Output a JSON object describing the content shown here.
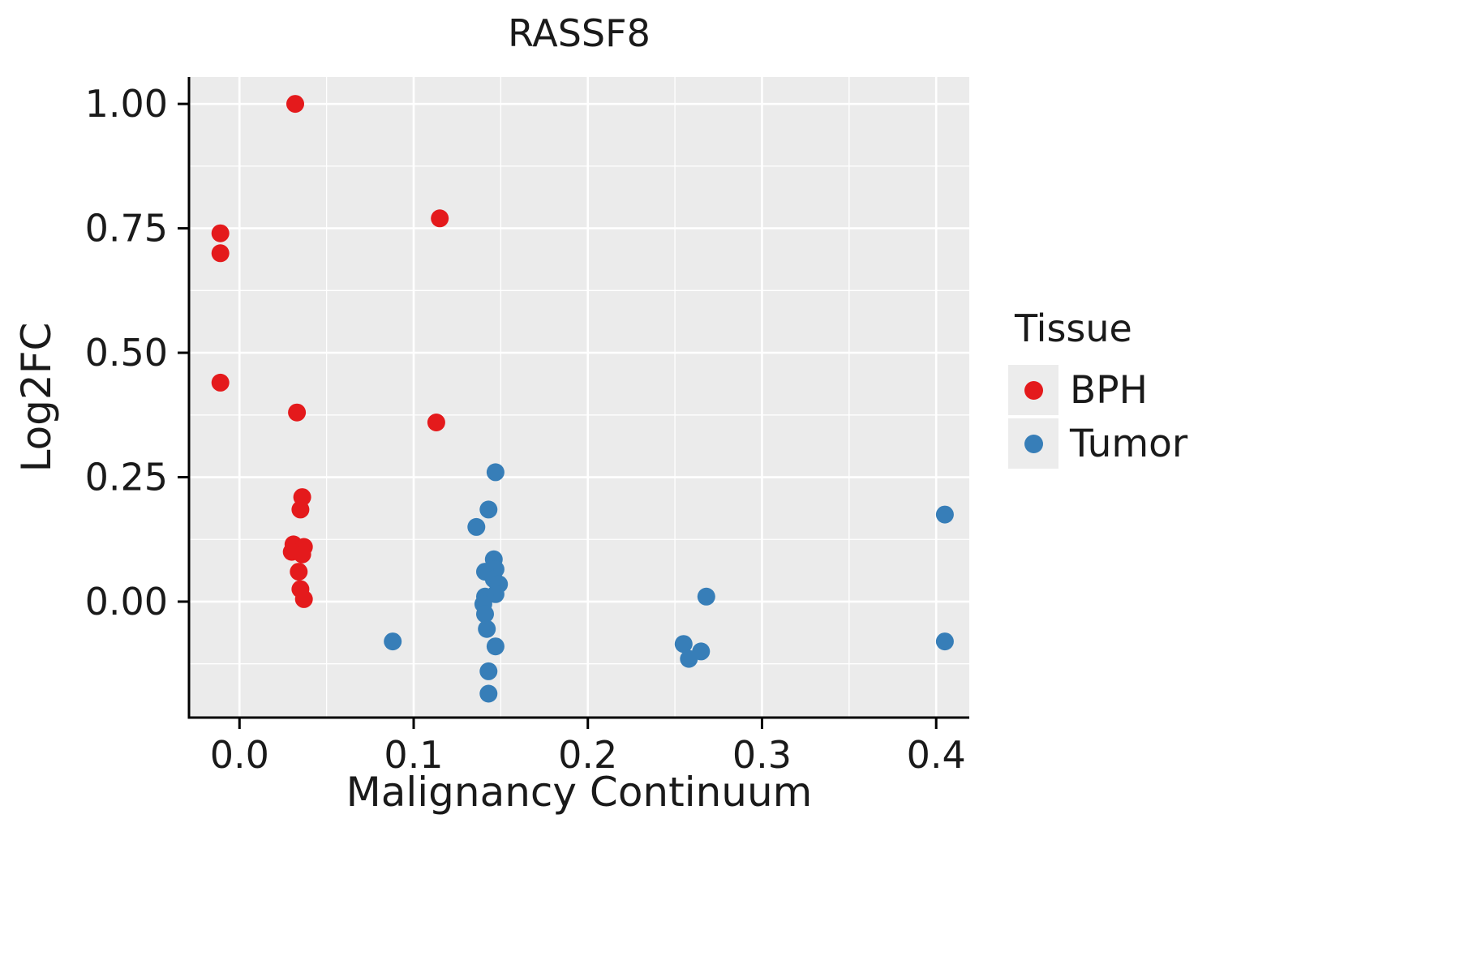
{
  "chart": {
    "title": "RASSF8",
    "xlabel": "Malignancy Continuum",
    "ylabel": "Log2FC",
    "legend_title": "Tissue",
    "panel_bg": "#EBEBEB",
    "grid_color": "#FFFFFF",
    "axis_color": "#000000",
    "bph_color": "#E41A1C",
    "tumor_color": "#377EB8"
  },
  "chart_data": {
    "type": "scatter",
    "title": "RASSF8",
    "xlabel": "Malignancy Continuum",
    "ylabel": "Log2FC",
    "legend_title": "Tissue",
    "legend_position": "right",
    "grid": true,
    "xlim": [
      -0.029,
      0.419
    ],
    "ylim": [
      -0.233,
      1.054
    ],
    "xtick_values": [
      0.0,
      0.1,
      0.2,
      0.3,
      0.4
    ],
    "xtick_labels": [
      "0.0",
      "0.1",
      "0.2",
      "0.3",
      "0.4"
    ],
    "ytick_values": [
      0.0,
      0.25,
      0.5,
      0.75,
      1.0
    ],
    "ytick_labels": [
      "0.00",
      "0.25",
      "0.50",
      "0.75",
      "1.00"
    ],
    "xminor_values": [
      0.05,
      0.15,
      0.25,
      0.35
    ],
    "yminor_values": [
      -0.125,
      0.125,
      0.375,
      0.625,
      0.875
    ],
    "series": [
      {
        "name": "BPH",
        "color": "#E41A1C",
        "points": [
          [
            0.032,
            1.0
          ],
          [
            0.115,
            0.77
          ],
          [
            -0.011,
            0.74
          ],
          [
            -0.011,
            0.7
          ],
          [
            -0.011,
            0.44
          ],
          [
            0.033,
            0.38
          ],
          [
            0.113,
            0.36
          ],
          [
            0.036,
            0.21
          ],
          [
            0.035,
            0.185
          ],
          [
            0.031,
            0.115
          ],
          [
            0.037,
            0.11
          ],
          [
            0.03,
            0.1
          ],
          [
            0.036,
            0.095
          ],
          [
            0.034,
            0.06
          ],
          [
            0.035,
            0.025
          ],
          [
            0.037,
            0.005
          ]
        ]
      },
      {
        "name": "Tumor",
        "color": "#377EB8",
        "points": [
          [
            0.147,
            0.26
          ],
          [
            0.143,
            0.185
          ],
          [
            0.136,
            0.15
          ],
          [
            0.405,
            0.175
          ],
          [
            0.146,
            0.085
          ],
          [
            0.147,
            0.065
          ],
          [
            0.141,
            0.06
          ],
          [
            0.146,
            0.045
          ],
          [
            0.149,
            0.035
          ],
          [
            0.147,
            0.015
          ],
          [
            0.141,
            0.01
          ],
          [
            0.268,
            0.01
          ],
          [
            0.14,
            -0.005
          ],
          [
            0.141,
            -0.025
          ],
          [
            0.142,
            -0.055
          ],
          [
            0.088,
            -0.08
          ],
          [
            0.147,
            -0.09
          ],
          [
            0.255,
            -0.085
          ],
          [
            0.265,
            -0.1
          ],
          [
            0.258,
            -0.115
          ],
          [
            0.405,
            -0.08
          ],
          [
            0.143,
            -0.14
          ],
          [
            0.143,
            -0.185
          ]
        ]
      }
    ]
  }
}
